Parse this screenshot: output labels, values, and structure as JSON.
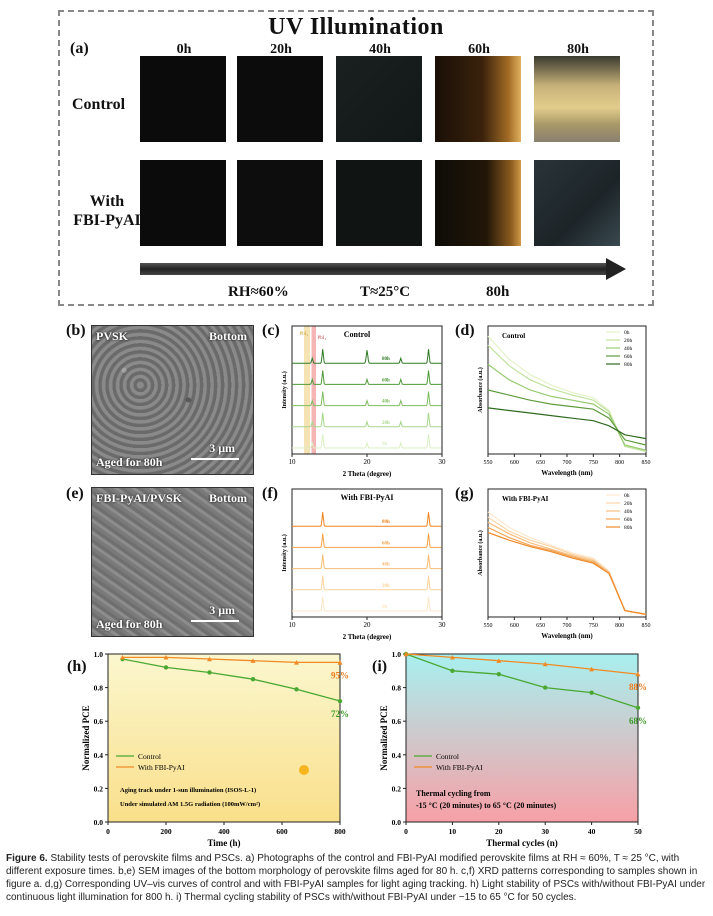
{
  "panel_a": {
    "title": "UV Illumination",
    "label": "(a)",
    "times": [
      "0h",
      "20h",
      "40h",
      "60h",
      "80h"
    ],
    "rows": [
      "Control",
      "With FBI-PyAI"
    ],
    "conditions": [
      "RH≈60%",
      "T≈25°C",
      "80h"
    ]
  },
  "panel_b": {
    "label": "(b)",
    "top_left": "PVSK",
    "top_right": "Bottom",
    "bottom_left": "Aged for 80h",
    "scale": "3 μm"
  },
  "panel_e": {
    "label": "(e)",
    "top_left": "FBI-PyAI/PVSK",
    "top_right": "Bottom",
    "bottom_left": "Aged for 80h",
    "scale": "3 μm"
  },
  "chart_data": [
    {
      "id": "c",
      "label": "(c)",
      "type": "line",
      "title": "Control",
      "xlabel": "2 Theta (degree)",
      "ylabel": "Intensity (a.u.)",
      "xlim": [
        10,
        30
      ],
      "x_ticks": [
        10,
        20,
        30
      ],
      "markers": [
        "PbI₂",
        "PbI₂"
      ],
      "series": [
        {
          "name": "0h"
        },
        {
          "name": "20h"
        },
        {
          "name": "40h"
        },
        {
          "name": "60h"
        },
        {
          "name": "80h"
        }
      ],
      "peaks": [
        12.7,
        14.1,
        20.0,
        24.5,
        28.2
      ],
      "colors": [
        "#d9efc4",
        "#a7d68a",
        "#7dbd5d",
        "#4f9a3a",
        "#2f7a25"
      ]
    },
    {
      "id": "d",
      "label": "(d)",
      "type": "line",
      "title": "Control",
      "xlabel": "Wavelength (nm)",
      "ylabel": "Absorbance (a.u.)",
      "xlim": [
        550,
        850
      ],
      "x_ticks": [
        550,
        600,
        650,
        700,
        750,
        800,
        850
      ],
      "series": [
        {
          "name": "0h",
          "y": [
            0.92,
            0.74,
            0.62,
            0.54,
            0.48,
            0.44,
            0.34,
            0.06,
            0.02
          ]
        },
        {
          "name": "20h",
          "y": [
            0.85,
            0.69,
            0.58,
            0.51,
            0.46,
            0.42,
            0.33,
            0.06,
            0.02
          ]
        },
        {
          "name": "40h",
          "y": [
            0.7,
            0.58,
            0.5,
            0.45,
            0.42,
            0.39,
            0.31,
            0.07,
            0.03
          ]
        },
        {
          "name": "60h",
          "y": [
            0.5,
            0.46,
            0.42,
            0.39,
            0.37,
            0.35,
            0.28,
            0.11,
            0.07
          ]
        },
        {
          "name": "80h",
          "y": [
            0.36,
            0.34,
            0.32,
            0.3,
            0.28,
            0.26,
            0.22,
            0.15,
            0.12
          ]
        }
      ],
      "x": [
        550,
        590,
        630,
        670,
        710,
        750,
        780,
        810,
        850
      ],
      "colors": [
        "#e3f2c9",
        "#c0e29d",
        "#98ca6f",
        "#5f9c3d",
        "#2f6a1f"
      ]
    },
    {
      "id": "f",
      "label": "(f)",
      "type": "line",
      "title": "With FBI-PyAI",
      "xlabel": "2 Theta (degree)",
      "ylabel": "Intensity (a.u.)",
      "xlim": [
        10,
        30
      ],
      "x_ticks": [
        10,
        20,
        30
      ],
      "series": [
        {
          "name": "0h"
        },
        {
          "name": "20h"
        },
        {
          "name": "40h"
        },
        {
          "name": "60h"
        },
        {
          "name": "80h"
        }
      ],
      "peaks": [
        14.1,
        28.2
      ],
      "colors": [
        "#fde6c4",
        "#fbd29b",
        "#f8bd73",
        "#f5a24a",
        "#ef8420"
      ]
    },
    {
      "id": "g",
      "label": "(g)",
      "type": "line",
      "title": "With FBI-PyAI",
      "xlabel": "Wavelength (nm)",
      "ylabel": "Absorbance (a.u.)",
      "xlim": [
        550,
        850
      ],
      "x_ticks": [
        550,
        600,
        650,
        700,
        750,
        800,
        850
      ],
      "series": [
        {
          "name": "0h",
          "y": [
            0.82,
            0.7,
            0.62,
            0.56,
            0.5,
            0.46,
            0.36,
            0.05,
            0.02
          ]
        },
        {
          "name": "20h",
          "y": [
            0.78,
            0.67,
            0.6,
            0.55,
            0.49,
            0.45,
            0.35,
            0.05,
            0.02
          ]
        },
        {
          "name": "40h",
          "y": [
            0.74,
            0.65,
            0.58,
            0.53,
            0.48,
            0.44,
            0.35,
            0.05,
            0.02
          ]
        },
        {
          "name": "60h",
          "y": [
            0.7,
            0.62,
            0.56,
            0.52,
            0.47,
            0.43,
            0.34,
            0.05,
            0.02
          ]
        },
        {
          "name": "80h",
          "y": [
            0.66,
            0.6,
            0.55,
            0.51,
            0.46,
            0.42,
            0.34,
            0.05,
            0.02
          ]
        }
      ],
      "x": [
        550,
        590,
        630,
        670,
        710,
        750,
        780,
        810,
        850
      ],
      "colors": [
        "#fde8cf",
        "#fbd5a8",
        "#f8bf80",
        "#f4a555",
        "#ee8a2c"
      ]
    },
    {
      "id": "h",
      "label": "(h)",
      "type": "line",
      "xlabel": "Time (h)",
      "ylabel": "Normalized PCE",
      "xlim": [
        0,
        800
      ],
      "ylim": [
        0.0,
        1.0
      ],
      "x_ticks": [
        0,
        200,
        400,
        600,
        800
      ],
      "y_ticks": [
        0.0,
        0.2,
        0.4,
        0.6,
        0.8,
        1.0
      ],
      "series": [
        {
          "name": "Control",
          "color": "#4aa832",
          "x": [
            50,
            200,
            350,
            500,
            650,
            800
          ],
          "y": [
            0.97,
            0.92,
            0.89,
            0.85,
            0.79,
            0.72
          ]
        },
        {
          "name": "With FBI-PyAI",
          "color": "#f08a24",
          "x": [
            50,
            200,
            350,
            500,
            650,
            800
          ],
          "y": [
            0.98,
            0.98,
            0.97,
            0.96,
            0.95,
            0.95
          ]
        }
      ],
      "end_labels": [
        "95%",
        "72%"
      ],
      "notes": [
        "Aging track under 1-sun illumination (ISOS-L-1)",
        "Under simulated AM 1.5G radiation (100mW/cm²)"
      ]
    },
    {
      "id": "i",
      "label": "(i)",
      "type": "line",
      "xlabel": "Thermal cycles (n)",
      "ylabel": "Normalized PCE",
      "xlim": [
        0,
        50
      ],
      "ylim": [
        0.0,
        1.0
      ],
      "x_ticks": [
        0,
        10,
        20,
        30,
        40,
        50
      ],
      "y_ticks": [
        0.0,
        0.2,
        0.4,
        0.6,
        0.8,
        1.0
      ],
      "series": [
        {
          "name": "Control",
          "color": "#4aa832",
          "x": [
            0,
            10,
            20,
            30,
            40,
            50
          ],
          "y": [
            1.0,
            0.9,
            0.88,
            0.8,
            0.77,
            0.68
          ]
        },
        {
          "name": "With FBI-PyAI",
          "color": "#f08a24",
          "x": [
            0,
            10,
            20,
            30,
            40,
            50
          ],
          "y": [
            1.0,
            0.98,
            0.96,
            0.94,
            0.91,
            0.88
          ]
        }
      ],
      "end_labels": [
        "88%",
        "68%"
      ],
      "notes": [
        "Thermal cycling from",
        "-15 °C (20 minutes) to 65 °C (20 minutes)"
      ]
    }
  ],
  "caption": {
    "label": "Figure 6.",
    "text": "Stability tests of perovskite films and PSCs. a) Photographs of the control and FBI-PyAI modified perovskite films at RH ≈ 60%, T ≈ 25 °C, with different exposure times. b,e) SEM images of the bottom morphology of perovskite films aged for 80 h. c,f) XRD patterns corresponding to samples shown in figure a. d,g) Corresponding UV–vis curves of control and with FBI-PyAI samples for light aging tracking. h) Light stability of PSCs with/without FBI-PyAI under continuous light illumination for 800 h. i) Thermal cycling stability of PSCs with/without FBI-PyAI under −15 to 65 °C for 50 cycles."
  }
}
